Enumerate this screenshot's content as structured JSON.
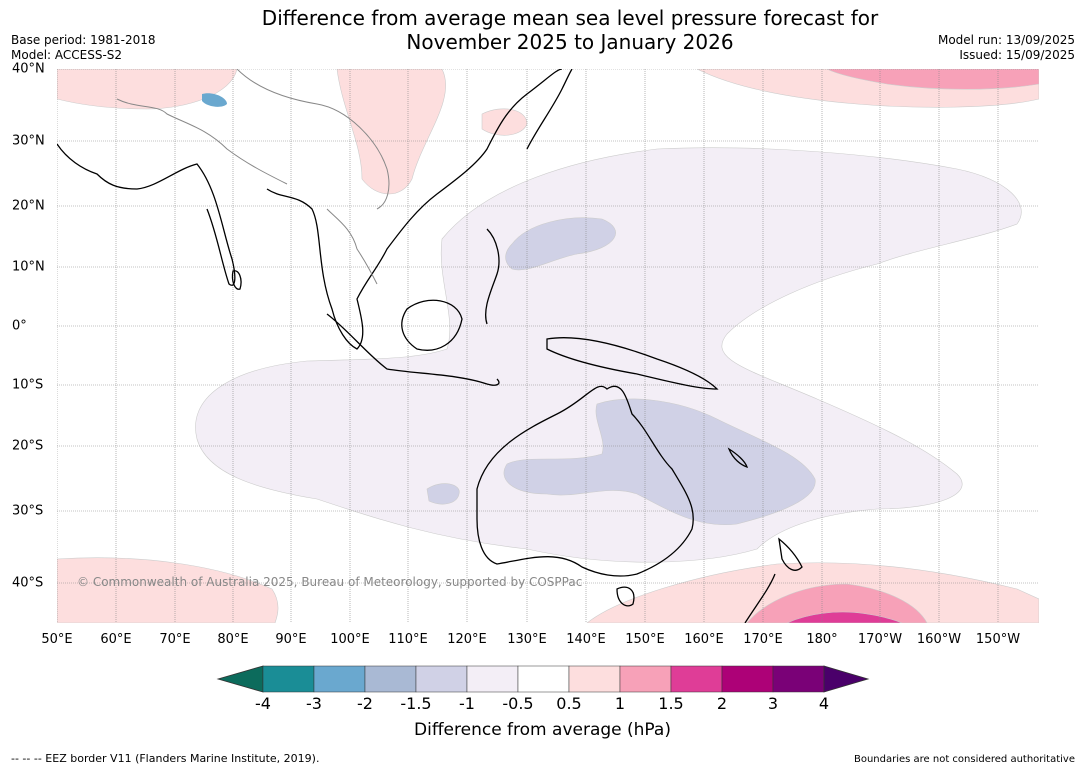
{
  "title": {
    "line1": "Difference from average mean sea level pressure forecast for",
    "line2": "November 2025 to January 2026"
  },
  "meta": {
    "base_period": "Base period: 1981-2018",
    "model": "Model: ACCESS-S2",
    "model_run": "Model run: 13/09/2025",
    "issued": "Issued: 15/09/2025"
  },
  "map": {
    "copyright": "© Commonwealth of Australia 2025, Bureau of Meteorology, supported by COSPPac",
    "lat_labels": [
      "40°N",
      "30°N",
      "20°N",
      "10°N",
      "0°",
      "10°S",
      "20°S",
      "30°S",
      "40°S"
    ],
    "lon_labels": [
      "50°E",
      "60°E",
      "70°E",
      "80°E",
      "90°E",
      "100°E",
      "110°E",
      "120°E",
      "130°E",
      "140°E",
      "150°E",
      "160°E",
      "170°E",
      "180°",
      "170°W",
      "160°W",
      "150°W"
    ]
  },
  "colorbar": {
    "title": "Difference from average (hPa)",
    "labels": [
      "-4",
      "-3",
      "-2",
      "-1.5",
      "-1",
      "-0.5",
      "0.5",
      "1",
      "1.5",
      "2",
      "3",
      "4"
    ],
    "colors": [
      "#1a8d96",
      "#6aa8cf",
      "#a9b9d4",
      "#d0d1e6",
      "#f3eef6",
      "#ffffff",
      "#fddede",
      "#f7a1b8",
      "#df3d97",
      "#ad0177",
      "#7a0177"
    ],
    "low_end_color": "#0c6b5c",
    "high_end_color": "#4a006a"
  },
  "footer": {
    "eez": "--  --  -- EEZ border V11 (Flanders Marine Institute, 2019).",
    "boundaries": "Boundaries are not considered authoritative"
  }
}
